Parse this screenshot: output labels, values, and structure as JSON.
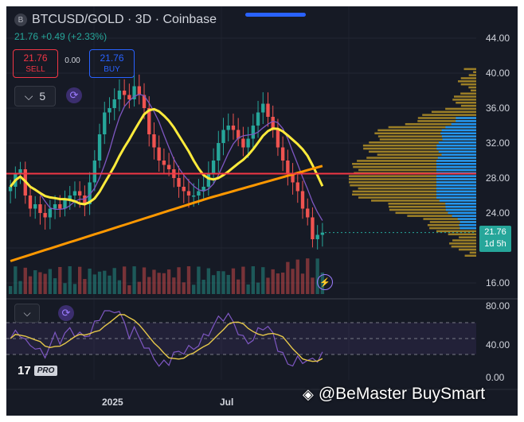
{
  "header": {
    "logo_letter": "B",
    "title": "BTCUSD/GOLD · 3D · Coinbase",
    "price_line": "21.76 +0.49 (+2.33%)"
  },
  "trade": {
    "sell_price": "21.76",
    "sell_label": "SELL",
    "spread": "0.00",
    "buy_price": "21.76",
    "buy_label": "BUY"
  },
  "indicators_toggle": {
    "chevron": "⌵",
    "count": "5"
  },
  "price_axis": {
    "ticks": [
      "44.00",
      "40.00",
      "36.00",
      "32.00",
      "28.00",
      "24.00",
      "16.00"
    ],
    "current_price": "21.76",
    "countdown": "1d 5h"
  },
  "rsi_axis": {
    "ticks": [
      "80.00",
      "40.00",
      "0.00"
    ]
  },
  "time_axis": {
    "labels": [
      "2025",
      "Jul"
    ]
  },
  "brand": {
    "logo": "17",
    "pro": "PRO"
  },
  "watermark": "@BeMaster BuySmart",
  "icons": {
    "sync": "sync-icon",
    "bolt": "lightning-icon",
    "chevron": "chevron-down-icon"
  },
  "colors": {
    "up": "#26a69a",
    "down": "#ef5350",
    "ma_fast": "#ffeb3b",
    "ma_slow": "#ff9800",
    "ma_purple": "#7e57c2",
    "support": "#f23645",
    "profile_gold": "#c9a227",
    "profile_blue": "#2196f3",
    "rsi": "#7e57c2",
    "rsi_ma": "#e6c84a"
  },
  "chart_data": {
    "type": "candlestick",
    "ylim": [
      14,
      46
    ],
    "support_level": 28.5,
    "close_series": [
      27,
      28.5,
      29,
      26,
      24.5,
      25,
      24,
      23.5,
      24.5,
      25,
      24.5,
      25.5,
      26,
      26.5,
      26,
      25,
      27.5,
      30,
      33,
      35.5,
      36,
      37,
      38,
      37.5,
      37,
      38.5,
      37.5,
      36,
      33,
      31.5,
      30,
      29.5,
      29,
      28,
      27,
      26.5,
      26,
      26,
      26.5,
      27,
      28.5,
      30,
      32,
      33.5,
      34,
      33.5,
      32.5,
      31.5,
      32.5,
      34,
      35.5,
      36.5,
      35,
      33.5,
      31.5,
      30,
      28.5,
      27.5,
      26.5,
      24.5,
      23.5,
      21,
      21.5,
      21.76
    ],
    "rsi": {
      "ylim": [
        0,
        90
      ],
      "bands": [
        70,
        50,
        30
      ]
    }
  }
}
